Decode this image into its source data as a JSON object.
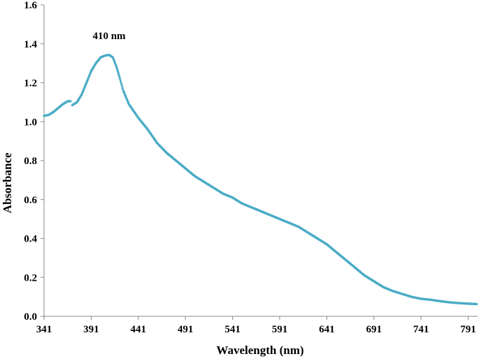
{
  "chart_data": {
    "type": "scatter",
    "xlabel": "Wavelength (nm)",
    "ylabel": "Absorbance",
    "xlim": [
      341,
      801
    ],
    "ylim": [
      0,
      1.6
    ],
    "x_ticks": [
      "341",
      "391",
      "441",
      "491",
      "541",
      "591",
      "641",
      "691",
      "741",
      "791"
    ],
    "y_ticks": [
      "0.0",
      "0.2",
      "0.4",
      "0.6",
      "0.8",
      "1.0",
      "1.2",
      "1.4",
      "1.6"
    ],
    "grid": false,
    "legend": "none",
    "marker_color": "#4BACC6",
    "annotations": [
      {
        "text": "410 nm",
        "x": 410,
        "y": 1.34
      }
    ],
    "series": [
      {
        "segments": [
          [
            [
              341,
              1.03
            ],
            [
              346,
              1.035
            ],
            [
              351,
              1.05
            ],
            [
              356,
              1.07
            ],
            [
              361,
              1.09
            ],
            [
              366,
              1.105
            ],
            [
              369,
              1.105
            ]
          ],
          [
            [
              371,
              1.085
            ],
            [
              376,
              1.1
            ],
            [
              381,
              1.14
            ],
            [
              386,
              1.2
            ],
            [
              391,
              1.26
            ],
            [
              396,
              1.3
            ],
            [
              401,
              1.33
            ],
            [
              406,
              1.34
            ],
            [
              410,
              1.343
            ],
            [
              414,
              1.33
            ],
            [
              418,
              1.28
            ],
            [
              421,
              1.23
            ],
            [
              425,
              1.16
            ],
            [
              431,
              1.09
            ],
            [
              441,
              1.02
            ],
            [
              451,
              0.96
            ],
            [
              461,
              0.89
            ],
            [
              471,
              0.84
            ],
            [
              481,
              0.8
            ],
            [
              491,
              0.76
            ],
            [
              501,
              0.72
            ],
            [
              511,
              0.69
            ],
            [
              521,
              0.66
            ],
            [
              531,
              0.63
            ],
            [
              541,
              0.61
            ],
            [
              551,
              0.58
            ],
            [
              561,
              0.56
            ],
            [
              571,
              0.54
            ],
            [
              581,
              0.52
            ],
            [
              591,
              0.5
            ],
            [
              601,
              0.48
            ],
            [
              611,
              0.46
            ],
            [
              621,
              0.43
            ],
            [
              631,
              0.4
            ],
            [
              641,
              0.37
            ],
            [
              651,
              0.33
            ],
            [
              661,
              0.29
            ],
            [
              671,
              0.25
            ],
            [
              681,
              0.21
            ],
            [
              691,
              0.18
            ],
            [
              701,
              0.15
            ],
            [
              711,
              0.13
            ],
            [
              721,
              0.115
            ],
            [
              731,
              0.1
            ],
            [
              741,
              0.09
            ],
            [
              751,
              0.085
            ],
            [
              761,
              0.078
            ],
            [
              771,
              0.072
            ],
            [
              781,
              0.068
            ],
            [
              791,
              0.065
            ],
            [
              800,
              0.063
            ]
          ]
        ]
      }
    ]
  }
}
